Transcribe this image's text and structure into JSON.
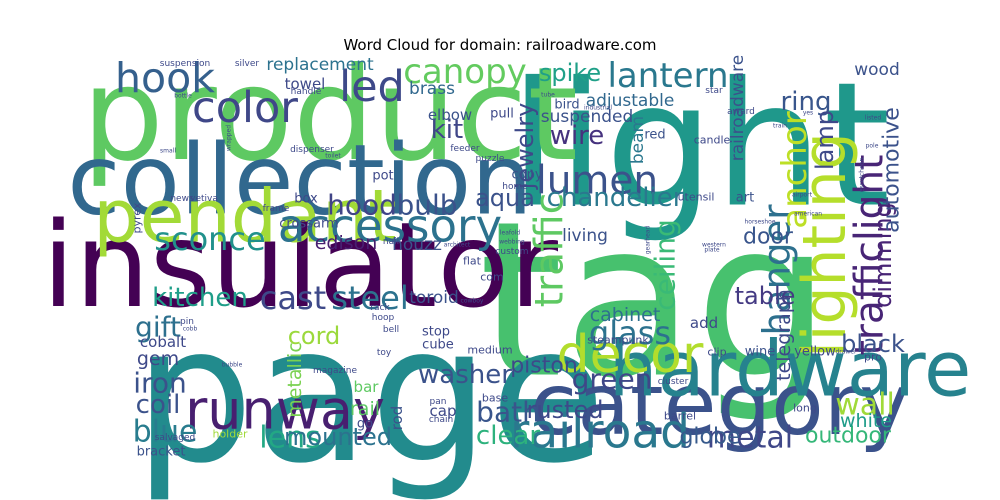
{
  "chart_data": {
    "type": "wordcloud",
    "title": "Word Cloud for domain: railroadware.com",
    "words": [
      {
        "text": "tag",
        "size": 1.0,
        "color": "#47c16e",
        "rot": 0
      },
      {
        "text": "page",
        "size": 0.88,
        "color": "#228b8d",
        "rot": 0
      },
      {
        "text": "light",
        "size": 0.8,
        "color": "#1f988b",
        "rot": 0
      },
      {
        "text": "product",
        "size": 0.6,
        "color": "#5ec962",
        "rot": 0
      },
      {
        "text": "insulator",
        "size": 0.55,
        "color": "#440154",
        "rot": 0
      },
      {
        "text": "collection",
        "size": 0.45,
        "color": "#31688e",
        "rot": 0
      },
      {
        "text": "category",
        "size": 0.4,
        "color": "#3b528b",
        "rot": 0
      },
      {
        "text": "hardware",
        "size": 0.36,
        "color": "#26828e",
        "rot": 0
      },
      {
        "text": "pendant",
        "size": 0.34,
        "color": "#a2da37",
        "rot": 0
      },
      {
        "text": "lighting",
        "size": 0.28,
        "color": "#b5de2b",
        "rot": 270
      },
      {
        "text": "runway",
        "size": 0.25,
        "color": "#481f70",
        "rot": 0
      },
      {
        "text": "decor",
        "size": 0.24,
        "color": "#b2dd2d",
        "rot": 0
      },
      {
        "text": "railroad",
        "size": 0.22,
        "color": "#2a788e",
        "rot": 0
      },
      {
        "text": "accessory",
        "size": 0.21,
        "color": "#2c728e",
        "rot": 0
      },
      {
        "text": "color",
        "size": 0.2,
        "color": "#3f4788",
        "rot": 0
      },
      {
        "text": "led",
        "size": 0.2,
        "color": "#3e4989",
        "rot": 0
      },
      {
        "text": "hook",
        "size": 0.19,
        "color": "#35608d",
        "rot": 0
      },
      {
        "text": "trafficlight",
        "size": 0.18,
        "color": "#482576",
        "rot": 270
      },
      {
        "text": "lumen",
        "size": 0.18,
        "color": "#3b528b",
        "rot": 0
      },
      {
        "text": "traffic",
        "size": 0.18,
        "color": "#5ec962",
        "rot": 270
      },
      {
        "text": "hanger",
        "size": 0.17,
        "color": "#2d708e",
        "rot": 270
      },
      {
        "text": "canopy",
        "size": 0.16,
        "color": "#63cb5f",
        "rot": 0
      },
      {
        "text": "lantern",
        "size": 0.16,
        "color": "#2a788e",
        "rot": 0
      },
      {
        "text": "anchor",
        "size": 0.16,
        "color": "#bddf26",
        "rot": 270
      },
      {
        "text": "sconce",
        "size": 0.15,
        "color": "#21918c",
        "rot": 0
      },
      {
        "text": "glass",
        "size": 0.15,
        "color": "#2c728e",
        "rot": 0
      },
      {
        "text": "cast",
        "size": 0.15,
        "color": "#3e4989",
        "rot": 0
      },
      {
        "text": "steel",
        "size": 0.15,
        "color": "#2c728e",
        "rot": 0
      },
      {
        "text": "lens",
        "size": 0.14,
        "color": "#22a884",
        "rot": 0
      },
      {
        "text": "metal",
        "size": 0.14,
        "color": "#3f4788",
        "rot": 0
      },
      {
        "text": "blue",
        "size": 0.14,
        "color": "#287c8e",
        "rot": 0
      },
      {
        "text": "wall",
        "size": 0.14,
        "color": "#a0da39",
        "rot": 0
      },
      {
        "text": "hood",
        "size": 0.13,
        "color": "#414487",
        "rot": 0
      },
      {
        "text": "bulb",
        "size": 0.13,
        "color": "#3b528b",
        "rot": 0
      },
      {
        "text": "gift",
        "size": 0.13,
        "color": "#2d708e",
        "rot": 0
      },
      {
        "text": "iron",
        "size": 0.13,
        "color": "#3b528b",
        "rot": 0
      },
      {
        "text": "green",
        "size": 0.13,
        "color": "#3f4788",
        "rot": 0
      },
      {
        "text": "ceiling",
        "size": 0.13,
        "color": "#3aba76",
        "rot": 270
      },
      {
        "text": "bath",
        "size": 0.13,
        "color": "#39558c",
        "rot": 0
      },
      {
        "text": "clear",
        "size": 0.12,
        "color": "#2db27d",
        "rot": 0
      },
      {
        "text": "chandelier",
        "size": 0.12,
        "color": "#2a788e",
        "rot": 0
      },
      {
        "text": "kitchen",
        "size": 0.12,
        "color": "#1f9e89",
        "rot": 0
      },
      {
        "text": "wire",
        "size": 0.12,
        "color": "#46327e",
        "rot": 0
      },
      {
        "text": "ring",
        "size": 0.12,
        "color": "#39568c",
        "rot": 0
      },
      {
        "text": "kit",
        "size": 0.12,
        "color": "#404688",
        "rot": 0
      },
      {
        "text": "washer",
        "size": 0.12,
        "color": "#3b528b",
        "rot": 0
      },
      {
        "text": "coil",
        "size": 0.12,
        "color": "#3b528b",
        "rot": 0
      },
      {
        "text": "rusted",
        "size": 0.11,
        "color": "#3e4989",
        "rot": 0
      },
      {
        "text": "mounted",
        "size": 0.11,
        "color": "#2c728e",
        "rot": 0
      },
      {
        "text": "jewelry",
        "size": 0.11,
        "color": "#3e4989",
        "rot": 270
      },
      {
        "text": "spike",
        "size": 0.11,
        "color": "#1fa088",
        "rot": 0
      },
      {
        "text": "aqua",
        "size": 0.11,
        "color": "#3b528b",
        "rot": 0
      },
      {
        "text": "black",
        "size": 0.11,
        "color": "#3b528b",
        "rot": 0
      },
      {
        "text": "table",
        "size": 0.11,
        "color": "#443a83",
        "rot": 0
      },
      {
        "text": "lamp",
        "size": 0.11,
        "color": "#3e4989",
        "rot": 270
      },
      {
        "text": "dimming",
        "size": 0.11,
        "color": "#482475",
        "rot": 270
      },
      {
        "text": "cord",
        "size": 0.11,
        "color": "#9bd93c",
        "rot": 0
      },
      {
        "text": "outdoor",
        "size": 0.1,
        "color": "#35b779",
        "rot": 0
      },
      {
        "text": "globe",
        "size": 0.1,
        "color": "#375a8c",
        "rot": 0
      },
      {
        "text": "door",
        "size": 0.1,
        "color": "#39558c",
        "rot": 0
      },
      {
        "text": "automotive",
        "size": 0.1,
        "color": "#3b528b",
        "rot": 270
      },
      {
        "text": "piston",
        "size": 0.1,
        "color": "#3e4989",
        "rot": 0
      },
      {
        "text": "white",
        "size": 0.09,
        "color": "#1e9c89",
        "rot": 0
      },
      {
        "text": "edison",
        "size": 0.09,
        "color": "#481f70",
        "rot": 0
      },
      {
        "text": "cabinet",
        "size": 0.09,
        "color": "#2d708e",
        "rot": 0
      },
      {
        "text": "metallic",
        "size": 0.09,
        "color": "#7ad151",
        "rot": 270
      },
      {
        "text": "rail",
        "size": 0.09,
        "color": "#5cc863",
        "rot": 0
      },
      {
        "text": "gem",
        "size": 0.09,
        "color": "#3e4989",
        "rot": 0
      },
      {
        "text": "telegraph",
        "size": 0.09,
        "color": "#3e4989",
        "rot": 270
      },
      {
        "text": "houzz",
        "size": 0.08,
        "color": "#3b528b",
        "rot": 0
      },
      {
        "text": "living",
        "size": 0.08,
        "color": "#3b528b",
        "rot": 0
      },
      {
        "text": "replacement",
        "size": 0.08,
        "color": "#2c728e",
        "rot": 0
      },
      {
        "text": "brass",
        "size": 0.08,
        "color": "#31688e",
        "rot": 0
      },
      {
        "text": "beam",
        "size": 0.08,
        "color": "#2a788e",
        "rot": 270
      },
      {
        "text": "suspended",
        "size": 0.08,
        "color": "#3b528b",
        "rot": 0
      },
      {
        "text": "adjustable",
        "size": 0.08,
        "color": "#31688e",
        "rot": 0
      },
      {
        "text": "railroadware",
        "size": 0.08,
        "color": "#3b528b",
        "rot": 270
      },
      {
        "text": "wood",
        "size": 0.08,
        "color": "#3b528b",
        "rot": 0
      },
      {
        "text": "toroid",
        "size": 0.08,
        "color": "#3b528b",
        "rot": 0
      },
      {
        "text": "bar",
        "size": 0.07,
        "color": "#5ec962",
        "rot": 0
      },
      {
        "text": "rod",
        "size": 0.07,
        "color": "#3b528b",
        "rot": 270
      },
      {
        "text": "cobalt",
        "size": 0.07,
        "color": "#3e4989",
        "rot": 0
      },
      {
        "text": "cap",
        "size": 0.07,
        "color": "#3e4989",
        "rot": 0
      },
      {
        "text": "add",
        "size": 0.07,
        "color": "#3e4989",
        "rot": 0
      },
      {
        "text": "elbow",
        "size": 0.07,
        "color": "#3b528b",
        "rot": 0
      },
      {
        "text": "towel",
        "size": 0.07,
        "color": "#3e4989",
        "rot": 0
      },
      {
        "text": "crossarm",
        "size": 0.06,
        "color": "#3e4989",
        "rot": 0
      },
      {
        "text": "bird",
        "size": 0.06,
        "color": "#3b528b",
        "rot": 0
      },
      {
        "text": "red",
        "size": 0.06,
        "color": "#3b528b",
        "rot": 0
      },
      {
        "text": "yellow",
        "size": 0.06,
        "color": "#3e4989",
        "rot": 0
      },
      {
        "text": "wine",
        "size": 0.06,
        "color": "#3b528b",
        "rot": 0
      },
      {
        "text": "bracket",
        "size": 0.06,
        "color": "#3b528b",
        "rot": 0
      },
      {
        "text": "copy",
        "size": 0.06,
        "color": "#3b528b",
        "rot": 0
      },
      {
        "text": "art",
        "size": 0.06,
        "color": "#3b528b",
        "rot": 0
      },
      {
        "text": "pull",
        "size": 0.06,
        "color": "#3e4989",
        "rot": 0
      },
      {
        "text": "pot",
        "size": 0.06,
        "color": "#3e4989",
        "rot": 0
      },
      {
        "text": "box",
        "size": 0.06,
        "color": "#3e4989",
        "rot": 0
      },
      {
        "text": "go",
        "size": 0.06,
        "color": "#3e4989",
        "rot": 0
      },
      {
        "text": "stop",
        "size": 0.06,
        "color": "#3e4989",
        "rot": 0
      },
      {
        "text": "cube",
        "size": 0.06,
        "color": "#3e4989",
        "rot": 0
      },
      {
        "text": "medium",
        "size": 0.05,
        "color": "#3e4989",
        "rot": 0
      },
      {
        "text": "pyrex",
        "size": 0.05,
        "color": "#3e4989",
        "rot": 270
      },
      {
        "text": "utensil",
        "size": 0.05,
        "color": "#3e4989",
        "rot": 0
      },
      {
        "text": "com",
        "size": 0.05,
        "color": "#3e4989",
        "rot": 0
      },
      {
        "text": "flat",
        "size": 0.05,
        "color": "#3e4989",
        "rot": 0
      },
      {
        "text": "long",
        "size": 0.05,
        "color": "#3e4989",
        "rot": 0
      },
      {
        "text": "base",
        "size": 0.05,
        "color": "#3e4989",
        "rot": 0
      },
      {
        "text": "clip",
        "size": 0.05,
        "color": "#3e4989",
        "rot": 0
      },
      {
        "text": "steampunk",
        "size": 0.05,
        "color": "#3e4989",
        "rot": 0
      },
      {
        "text": "candle",
        "size": 0.05,
        "color": "#3e4989",
        "rot": 0
      },
      {
        "text": "barrel",
        "size": 0.05,
        "color": "#3e4989",
        "rot": 0
      },
      {
        "text": "holder",
        "size": 0.05,
        "color": "#a0da39",
        "rot": 0
      },
      {
        "text": "pro",
        "size": 0.05,
        "color": "#3e4989",
        "rot": 0
      },
      {
        "text": "news",
        "size": 0.04,
        "color": "#3e4989",
        "rot": 0
      },
      {
        "text": "hoop",
        "size": 0.04,
        "color": "#3e4989",
        "rot": 0
      },
      {
        "text": "home",
        "size": 0.04,
        "color": "#3e4989",
        "rot": 0
      },
      {
        "text": "handle",
        "size": 0.04,
        "color": "#3e4989",
        "rot": 0
      },
      {
        "text": "frame",
        "size": 0.04,
        "color": "#3e4989",
        "rot": 0
      },
      {
        "text": "dispenser",
        "size": 0.04,
        "color": "#3e4989",
        "rot": 0
      },
      {
        "text": "magazine",
        "size": 0.04,
        "color": "#3e4989",
        "rot": 0
      },
      {
        "text": "salvaged",
        "size": 0.04,
        "color": "#3e4989",
        "rot": 0
      },
      {
        "text": "vetiva",
        "size": 0.04,
        "color": "#3e4989",
        "rot": 0
      },
      {
        "text": "pan",
        "size": 0.04,
        "color": "#3e4989",
        "rot": 0
      },
      {
        "text": "chain",
        "size": 0.04,
        "color": "#3e4989",
        "rot": 0
      },
      {
        "text": "bell",
        "size": 0.04,
        "color": "#3e4989",
        "rot": 0
      },
      {
        "text": "nail",
        "size": 0.04,
        "color": "#3e4989",
        "rot": 0
      },
      {
        "text": "toy",
        "size": 0.04,
        "color": "#3e4989",
        "rot": 0
      },
      {
        "text": "rack",
        "size": 0.04,
        "color": "#3e4989",
        "rot": 0
      },
      {
        "text": "feeder",
        "size": 0.04,
        "color": "#3e4989",
        "rot": 0
      },
      {
        "text": "puzzle",
        "size": 0.04,
        "color": "#3e4989",
        "rot": 0
      },
      {
        "text": "custom",
        "size": 0.04,
        "color": "#3e4989",
        "rot": 0
      },
      {
        "text": "suspension",
        "size": 0.04,
        "color": "#3e4989",
        "rot": 0
      },
      {
        "text": "silver",
        "size": 0.04,
        "color": "#3e4989",
        "rot": 0
      },
      {
        "text": "star",
        "size": 0.04,
        "color": "#3e4989",
        "rot": 0
      },
      {
        "text": "award",
        "size": 0.04,
        "color": "#3e4989",
        "rot": 0
      },
      {
        "text": "pin",
        "size": 0.04,
        "color": "#3e4989",
        "rot": 0
      },
      {
        "text": "cluster",
        "size": 0.04,
        "color": "#3e4989",
        "rot": 0
      },
      {
        "text": "drawer",
        "size": 0.03,
        "color": "#3e4989",
        "rot": 0
      },
      {
        "text": "pole",
        "size": 0.03,
        "color": "#3e4989",
        "rot": 0
      },
      {
        "text": "yes",
        "size": 0.03,
        "color": "#3e4989",
        "rot": 0
      },
      {
        "text": "train",
        "size": 0.03,
        "color": "#3e4989",
        "rot": 0
      },
      {
        "text": "american",
        "size": 0.03,
        "color": "#3e4989",
        "rot": 0
      },
      {
        "text": "airport",
        "size": 0.03,
        "color": "#3e4989",
        "rot": 0
      },
      {
        "text": "plate",
        "size": 0.03,
        "color": "#3e4989",
        "rot": 0
      },
      {
        "text": "horseshoe",
        "size": 0.03,
        "color": "#3e4989",
        "rot": 0
      },
      {
        "text": "western",
        "size": 0.03,
        "color": "#3e4989",
        "rot": 0
      },
      {
        "text": "webbing",
        "size": 0.03,
        "color": "#3e4989",
        "rot": 0
      },
      {
        "text": "architect",
        "size": 0.03,
        "color": "#3e4989",
        "rot": 0
      },
      {
        "text": "leafold",
        "size": 0.03,
        "color": "#3e4989",
        "rot": 0
      },
      {
        "text": "cobb",
        "size": 0.03,
        "color": "#3e4989",
        "rot": 0
      },
      {
        "text": "cowboy",
        "size": 0.03,
        "color": "#3e4989",
        "rot": 0
      },
      {
        "text": "bubble",
        "size": 0.03,
        "color": "#3e4989",
        "rot": 0
      },
      {
        "text": "toilet",
        "size": 0.03,
        "color": "#3e4989",
        "rot": 0
      },
      {
        "text": "tube",
        "size": 0.03,
        "color": "#3e4989",
        "rot": 0
      },
      {
        "text": "industrial",
        "size": 0.03,
        "color": "#3e4989",
        "rot": 0
      },
      {
        "text": "listed",
        "size": 0.03,
        "color": "#3e4989",
        "rot": 0
      },
      {
        "text": "gearhead",
        "size": 0.03,
        "color": "#3e4989",
        "rot": 270
      },
      {
        "text": "escutcheon",
        "size": 0.03,
        "color": "#3e4989",
        "rot": 270
      },
      {
        "text": "wrapped",
        "size": 0.03,
        "color": "#3e4989",
        "rot": 270
      },
      {
        "text": "bottle",
        "size": 0.03,
        "color": "#3e4989",
        "rot": 0
      },
      {
        "text": "small",
        "size": 0.03,
        "color": "#3e4989",
        "rot": 0
      }
    ]
  }
}
